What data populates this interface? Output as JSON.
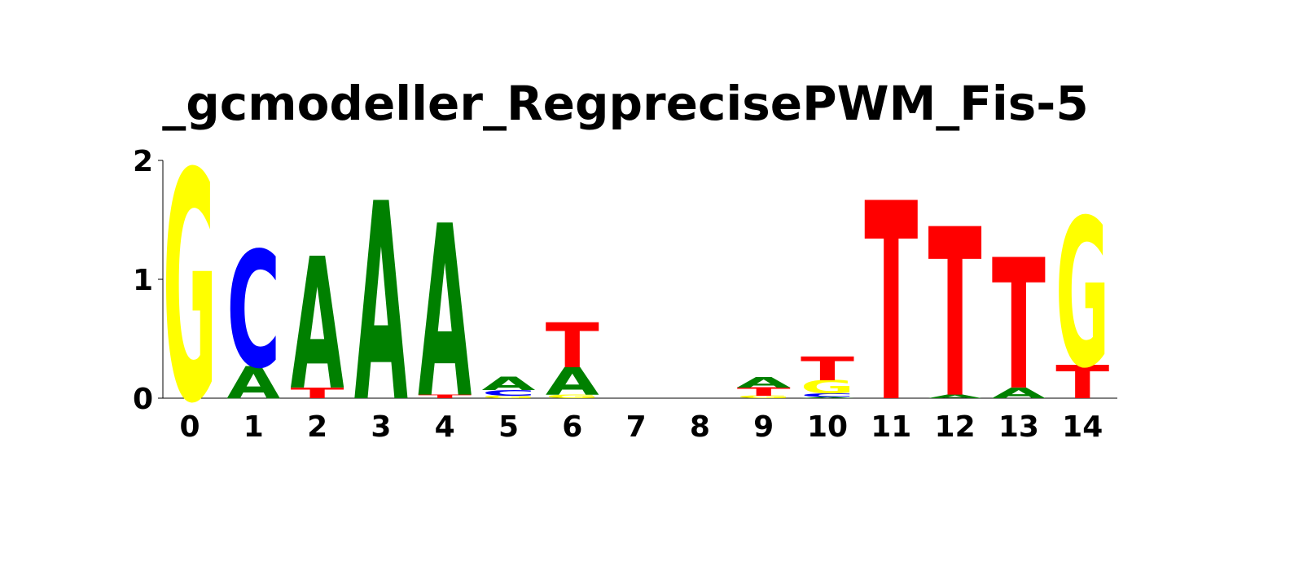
{
  "chart_data": {
    "type": "sequence-logo",
    "title": "_gcmodeller_RegprecisePWM_Fis-5",
    "ylim": [
      0,
      2
    ],
    "y_ticks": [
      "0",
      "1",
      "2"
    ],
    "positions": [
      "0",
      "1",
      "2",
      "3",
      "4",
      "5",
      "6",
      "7",
      "8",
      "9",
      "10",
      "11",
      "12",
      "13",
      "14"
    ],
    "colors": {
      "A": "#008000",
      "C": "#0000ff",
      "G": "#ffff00",
      "T": "#ff0000"
    },
    "stacks": [
      [
        {
          "base": "G",
          "bits": 1.93
        }
      ],
      [
        {
          "base": "A",
          "bits": 0.27
        },
        {
          "base": "C",
          "bits": 0.98
        }
      ],
      [
        {
          "base": "T",
          "bits": 0.09
        },
        {
          "base": "A",
          "bits": 1.11
        }
      ],
      [
        {
          "base": "A",
          "bits": 1.67
        }
      ],
      [
        {
          "base": "T",
          "bits": 0.03
        },
        {
          "base": "A",
          "bits": 1.45
        }
      ],
      [
        {
          "base": "G",
          "bits": 0.02
        },
        {
          "base": "C",
          "bits": 0.05
        },
        {
          "base": "A",
          "bits": 0.11
        }
      ],
      [
        {
          "base": "G",
          "bits": 0.03
        },
        {
          "base": "A",
          "bits": 0.23
        },
        {
          "base": "T",
          "bits": 0.38
        }
      ],
      [],
      [],
      [
        {
          "base": "G",
          "bits": 0.02
        },
        {
          "base": "T",
          "bits": 0.07
        },
        {
          "base": "A",
          "bits": 0.09
        }
      ],
      [
        {
          "base": "A",
          "bits": 0.01
        },
        {
          "base": "C",
          "bits": 0.03
        },
        {
          "base": "G",
          "bits": 0.11
        },
        {
          "base": "T",
          "bits": 0.2
        }
      ],
      [
        {
          "base": "T",
          "bits": 1.67
        }
      ],
      [
        {
          "base": "A",
          "bits": 0.03
        },
        {
          "base": "T",
          "bits": 1.42
        }
      ],
      [
        {
          "base": "A",
          "bits": 0.09
        },
        {
          "base": "T",
          "bits": 1.1
        }
      ],
      [
        {
          "base": "T",
          "bits": 0.28
        },
        {
          "base": "G",
          "bits": 1.25
        }
      ]
    ]
  }
}
